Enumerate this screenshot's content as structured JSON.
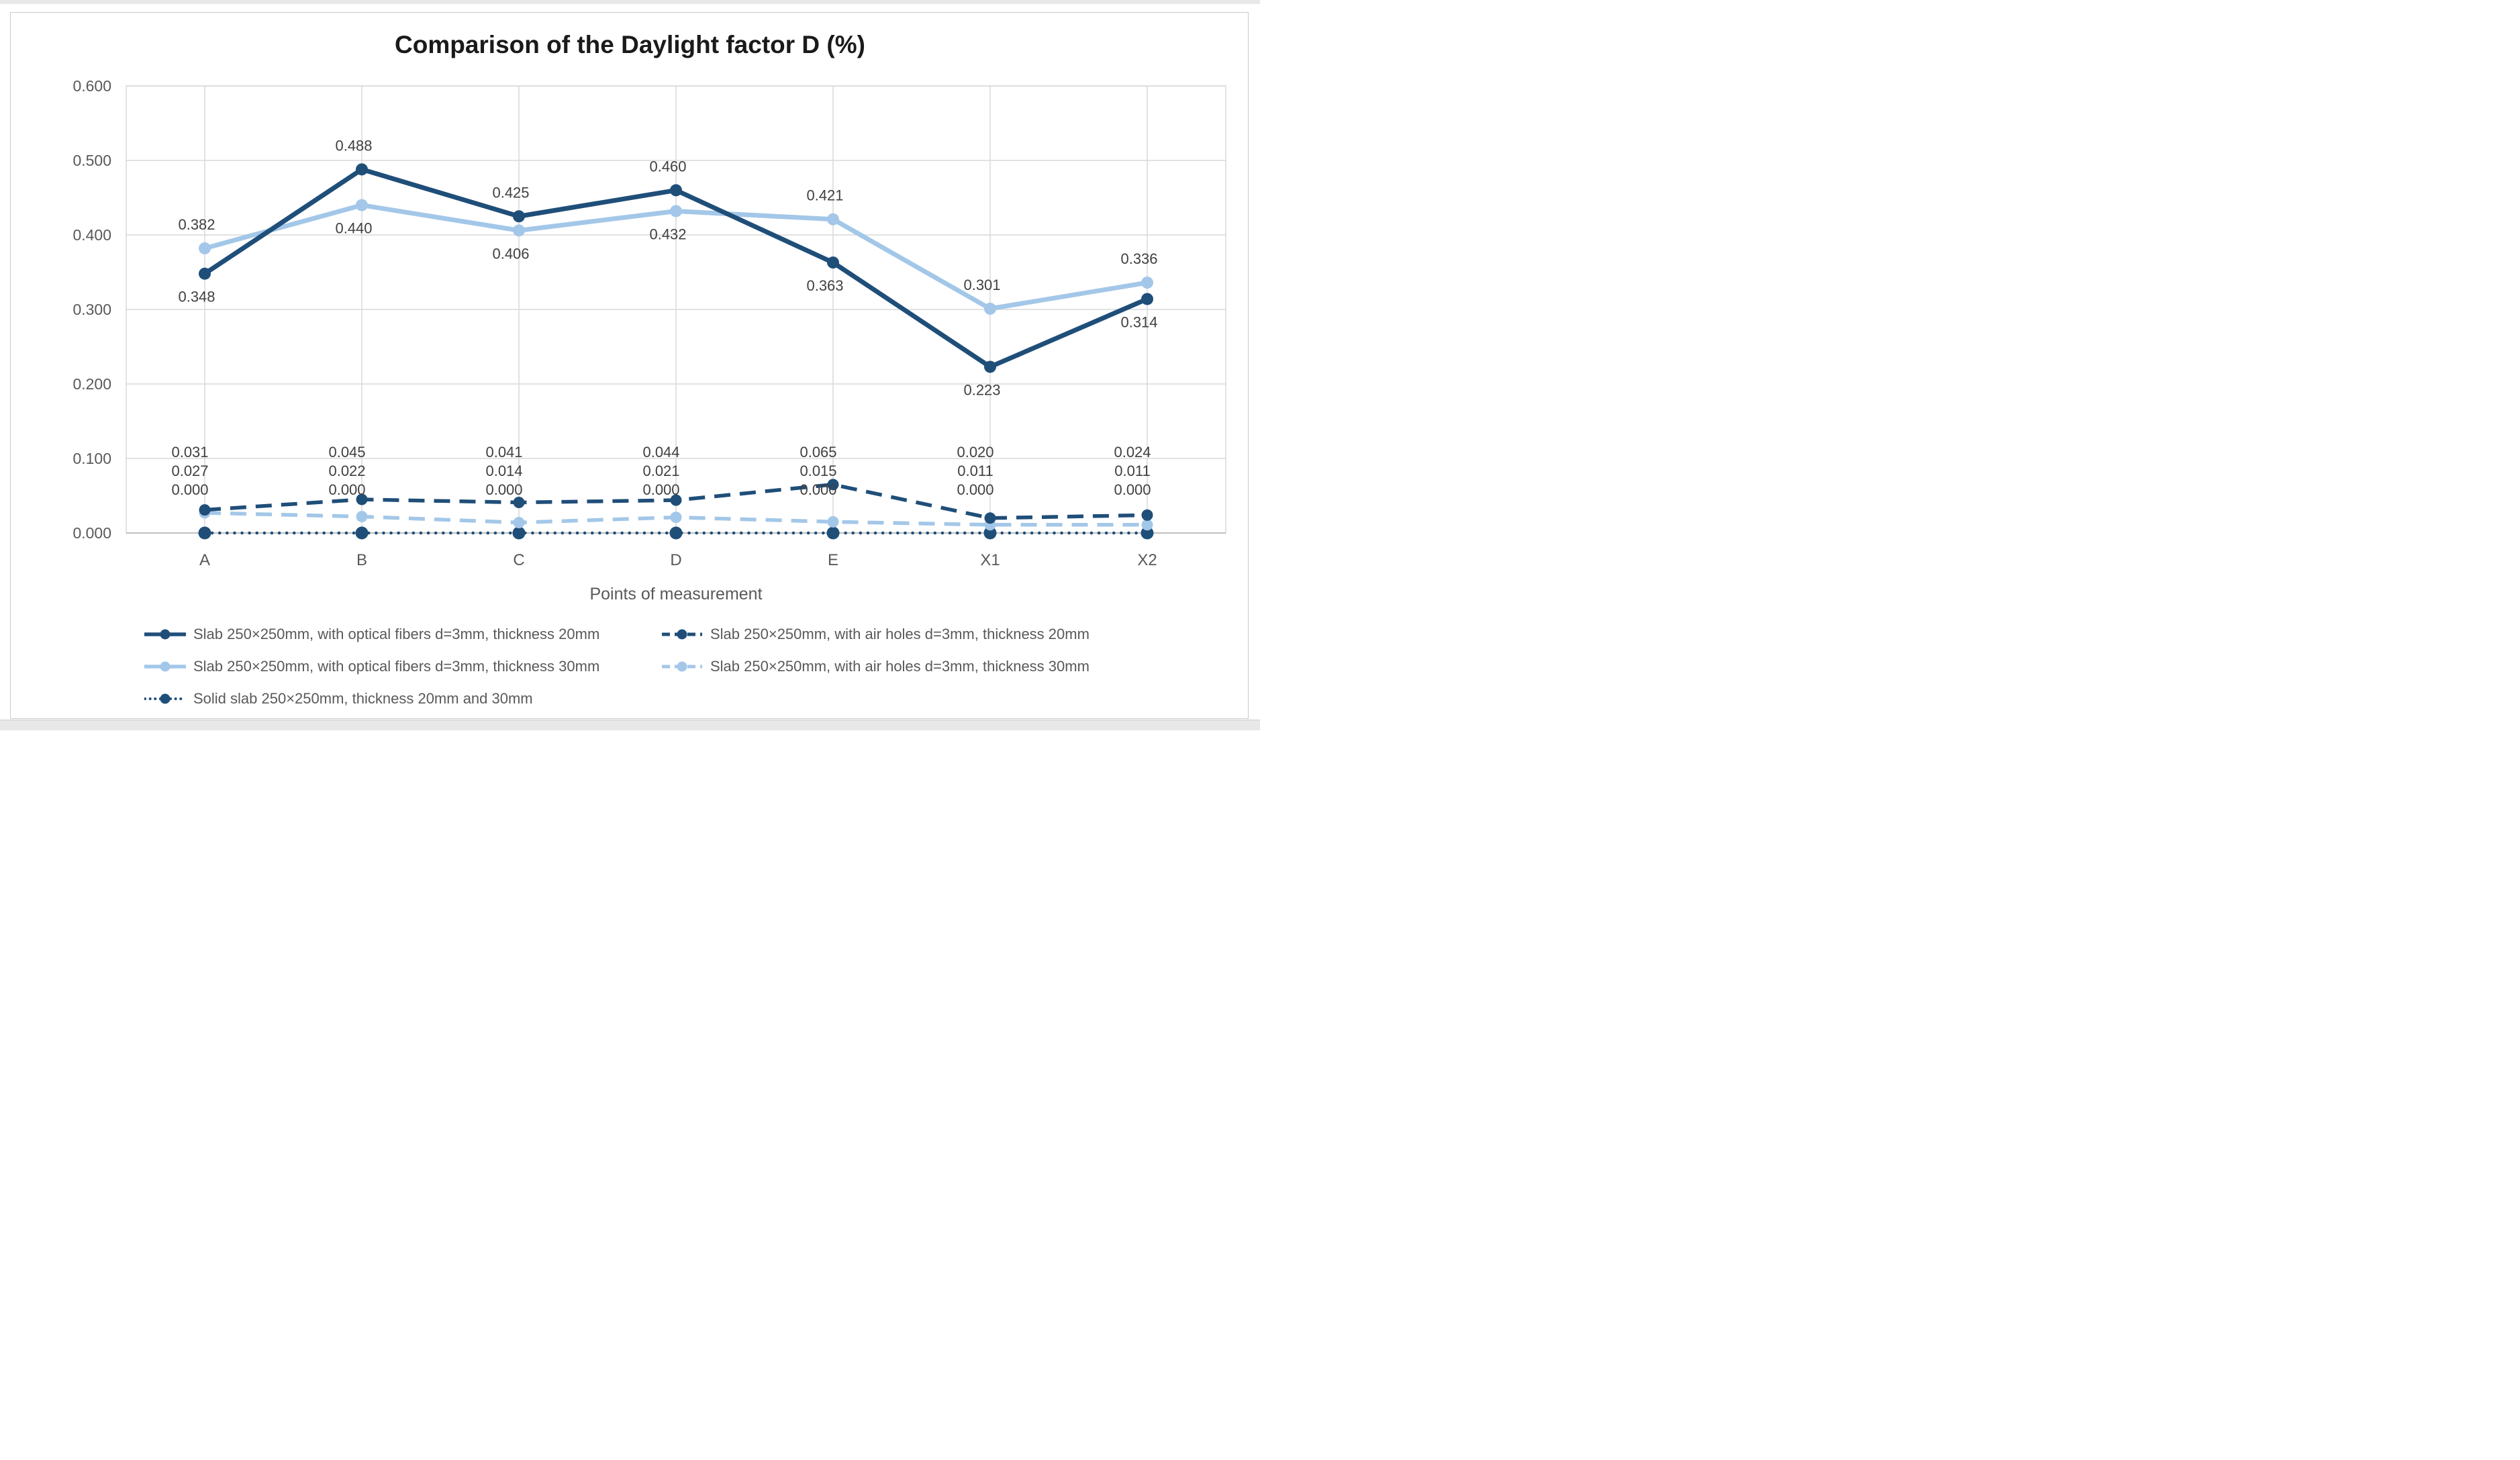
{
  "window": {
    "background_color": "#ffffff",
    "edge_color": "#e8e8e8",
    "card_border_color": "#c9c9c9"
  },
  "chart_data": {
    "type": "line",
    "title": "Comparison of the Daylight factor D (%)",
    "xlabel": "Points of measurement",
    "ylabel": "",
    "ylim": [
      0,
      0.6
    ],
    "y_tick_labels": [
      "0.000",
      "0.100",
      "0.200",
      "0.300",
      "0.400",
      "0.500",
      "0.600"
    ],
    "categories": [
      "A",
      "B",
      "C",
      "D",
      "E",
      "X1",
      "X2"
    ],
    "grid": true,
    "legend_position": "bottom",
    "data_label_decimals": 3,
    "colors": {
      "dark_blue": "#1F4E79",
      "light_blue": "#A3C7E8",
      "gridline": "#D9D9D9",
      "axis_line": "#BFBFBF",
      "tick_text": "#595959",
      "data_label_text": "#404040",
      "title_text": "#1a1a1a"
    },
    "series": [
      {
        "name": "Slab 250×250mm, with optical fibers d=3mm, thickness 20mm",
        "color_key": "dark_blue",
        "line_style": "solid",
        "values": [
          0.348,
          0.488,
          0.425,
          0.46,
          0.363,
          0.223,
          0.314
        ]
      },
      {
        "name": "Slab 250×250mm, with air holes d=3mm, thickness 20mm",
        "color_key": "dark_blue",
        "line_style": "dashed",
        "values": [
          0.031,
          0.045,
          0.041,
          0.044,
          0.065,
          0.02,
          0.024
        ]
      },
      {
        "name": "Slab 250×250mm, with optical fibers d=3mm, thickness 30mm",
        "color_key": "light_blue",
        "line_style": "solid",
        "values": [
          0.382,
          0.44,
          0.406,
          0.432,
          0.421,
          0.301,
          0.336
        ]
      },
      {
        "name": "Slab 250×250mm, with air holes d=3mm, thickness 30mm",
        "color_key": "light_blue",
        "line_style": "dashed",
        "values": [
          0.027,
          0.022,
          0.014,
          0.021,
          0.015,
          0.011,
          0.011
        ]
      },
      {
        "name": "Solid slab 250×250mm, thickness 20mm and 30mm",
        "color_key": "dark_blue",
        "line_style": "dotted",
        "values": [
          0.0,
          0.0,
          0.0,
          0.0,
          0.0,
          0.0,
          0.0
        ]
      }
    ]
  }
}
